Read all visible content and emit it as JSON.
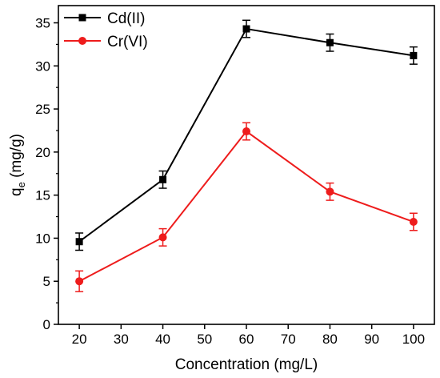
{
  "chart_data": {
    "type": "line",
    "title": "",
    "xlabel": "Concentration (mg/L)",
    "ylabel_main": "q",
    "ylabel_sub": "e",
    "ylabel_rest": " (mg/g)",
    "xlim": [
      15,
      105
    ],
    "ylim": [
      0,
      37
    ],
    "xticks": [
      20,
      30,
      40,
      50,
      60,
      70,
      80,
      90,
      100
    ],
    "yticks": [
      0,
      5,
      10,
      15,
      20,
      25,
      30,
      35
    ],
    "grid": false,
    "legend_position": "top-left",
    "x": [
      20,
      40,
      60,
      80,
      100
    ],
    "series": [
      {
        "name": "Cd(II)",
        "color": "#000000",
        "marker": "square",
        "values": [
          9.6,
          16.8,
          34.3,
          32.7,
          31.2
        ],
        "errors": [
          1.0,
          1.0,
          1.0,
          1.0,
          1.0
        ]
      },
      {
        "name": "Cr(VI)",
        "color": "#ee1c1c",
        "marker": "circle",
        "values": [
          5.0,
          10.1,
          22.4,
          15.4,
          11.9
        ],
        "errors": [
          1.2,
          1.0,
          1.0,
          1.0,
          1.0
        ]
      }
    ]
  }
}
